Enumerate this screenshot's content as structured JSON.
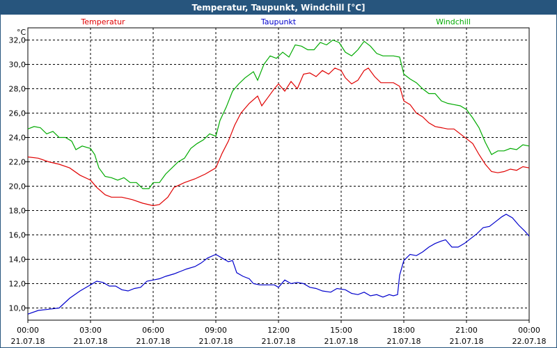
{
  "title": "Temperatur, Taupunkt, Windchill [°C]",
  "chart_data": {
    "type": "line",
    "title": "Temperatur, Taupunkt, Windchill [°C]",
    "ylabel": "°C",
    "ylim": [
      9,
      33
    ],
    "xlim": [
      0,
      24
    ],
    "grid": true,
    "legend_placement": "top",
    "y_ticks": [
      "10,0",
      "12,0",
      "14,0",
      "16,0",
      "18,0",
      "20,0",
      "22,0",
      "24,0",
      "26,0",
      "28,0",
      "30,0",
      "32,0"
    ],
    "x_ticks": [
      {
        "time": "00:00",
        "date": "21.07.18"
      },
      {
        "time": "03:00",
        "date": "21.07.18"
      },
      {
        "time": "06:00",
        "date": "21.07.18"
      },
      {
        "time": "09:00",
        "date": "21.07.18"
      },
      {
        "time": "12:00",
        "date": "21.07.18"
      },
      {
        "time": "15:00",
        "date": "21.07.18"
      },
      {
        "time": "18:00",
        "date": "21.07.18"
      },
      {
        "time": "21:00",
        "date": "21.07.18"
      },
      {
        "time": "00:00",
        "date": "22.07.18"
      }
    ],
    "series": [
      {
        "name": "Temperatur",
        "color": "#e00000",
        "points": [
          [
            0,
            22.4
          ],
          [
            0.5,
            22.3
          ],
          [
            1,
            22.0
          ],
          [
            1.5,
            21.8
          ],
          [
            2,
            21.5
          ],
          [
            2.5,
            20.9
          ],
          [
            3,
            20.5
          ],
          [
            3.3,
            19.9
          ],
          [
            3.7,
            19.3
          ],
          [
            4,
            19.1
          ],
          [
            4.5,
            19.1
          ],
          [
            5,
            18.9
          ],
          [
            5.5,
            18.6
          ],
          [
            6,
            18.4
          ],
          [
            6.3,
            18.5
          ],
          [
            6.7,
            19.1
          ],
          [
            7,
            19.9
          ],
          [
            7.5,
            20.3
          ],
          [
            8,
            20.6
          ],
          [
            8.5,
            21.0
          ],
          [
            9,
            21.5
          ],
          [
            9.3,
            22.7
          ],
          [
            9.6,
            23.7
          ],
          [
            9.9,
            25.0
          ],
          [
            10.2,
            26.0
          ],
          [
            10.6,
            26.8
          ],
          [
            11,
            27.4
          ],
          [
            11.2,
            26.6
          ],
          [
            11.5,
            27.3
          ],
          [
            11.8,
            28.0
          ],
          [
            12,
            28.4
          ],
          [
            12.3,
            27.8
          ],
          [
            12.6,
            28.6
          ],
          [
            12.9,
            28.0
          ],
          [
            13.2,
            29.2
          ],
          [
            13.5,
            29.3
          ],
          [
            13.8,
            29.0
          ],
          [
            14.1,
            29.5
          ],
          [
            14.4,
            29.2
          ],
          [
            14.7,
            29.7
          ],
          [
            15,
            29.5
          ],
          [
            15.2,
            28.9
          ],
          [
            15.5,
            28.4
          ],
          [
            15.8,
            28.7
          ],
          [
            16.1,
            29.5
          ],
          [
            16.3,
            29.7
          ],
          [
            16.6,
            29.0
          ],
          [
            16.9,
            28.5
          ],
          [
            17.2,
            28.5
          ],
          [
            17.5,
            28.5
          ],
          [
            17.8,
            28.2
          ],
          [
            18,
            27.0
          ],
          [
            18.3,
            26.7
          ],
          [
            18.6,
            26.0
          ],
          [
            18.9,
            25.7
          ],
          [
            19.2,
            25.2
          ],
          [
            19.5,
            24.9
          ],
          [
            19.8,
            24.8
          ],
          [
            20.1,
            24.7
          ],
          [
            20.4,
            24.7
          ],
          [
            20.7,
            24.3
          ],
          [
            21,
            23.9
          ],
          [
            21.3,
            23.5
          ],
          [
            21.6,
            22.6
          ],
          [
            21.9,
            21.8
          ],
          [
            22.2,
            21.2
          ],
          [
            22.5,
            21.1
          ],
          [
            22.8,
            21.2
          ],
          [
            23.1,
            21.4
          ],
          [
            23.4,
            21.3
          ],
          [
            23.7,
            21.6
          ],
          [
            24,
            21.5
          ]
        ]
      },
      {
        "name": "Taupunkt",
        "color": "#0000cc",
        "points": [
          [
            0,
            9.5
          ],
          [
            0.5,
            9.8
          ],
          [
            1,
            9.9
          ],
          [
            1.5,
            10.0
          ],
          [
            2,
            10.8
          ],
          [
            2.5,
            11.4
          ],
          [
            3,
            11.9
          ],
          [
            3.3,
            12.2
          ],
          [
            3.6,
            12.1
          ],
          [
            3.9,
            11.8
          ],
          [
            4.2,
            11.8
          ],
          [
            4.5,
            11.5
          ],
          [
            4.8,
            11.4
          ],
          [
            5.1,
            11.6
          ],
          [
            5.4,
            11.7
          ],
          [
            5.7,
            12.2
          ],
          [
            6,
            12.3
          ],
          [
            6.3,
            12.4
          ],
          [
            6.6,
            12.6
          ],
          [
            7,
            12.8
          ],
          [
            7.3,
            13.0
          ],
          [
            7.6,
            13.2
          ],
          [
            8,
            13.4
          ],
          [
            8.3,
            13.7
          ],
          [
            8.6,
            14.1
          ],
          [
            9,
            14.4
          ],
          [
            9.3,
            14.1
          ],
          [
            9.6,
            13.8
          ],
          [
            9.8,
            13.9
          ],
          [
            10,
            12.9
          ],
          [
            10.3,
            12.6
          ],
          [
            10.6,
            12.4
          ],
          [
            10.8,
            12.0
          ],
          [
            11.1,
            11.9
          ],
          [
            11.5,
            11.9
          ],
          [
            11.8,
            11.9
          ],
          [
            12,
            11.7
          ],
          [
            12.3,
            12.3
          ],
          [
            12.6,
            12.0
          ],
          [
            12.9,
            12.1
          ],
          [
            13.2,
            12.0
          ],
          [
            13.5,
            11.7
          ],
          [
            13.8,
            11.6
          ],
          [
            14.1,
            11.4
          ],
          [
            14.5,
            11.3
          ],
          [
            14.8,
            11.6
          ],
          [
            15.2,
            11.5
          ],
          [
            15.5,
            11.2
          ],
          [
            15.8,
            11.1
          ],
          [
            16.1,
            11.3
          ],
          [
            16.4,
            11.0
          ],
          [
            16.7,
            11.1
          ],
          [
            17,
            10.9
          ],
          [
            17.3,
            11.1
          ],
          [
            17.5,
            11.0
          ],
          [
            17.7,
            11.1
          ],
          [
            17.8,
            12.7
          ],
          [
            18,
            13.9
          ],
          [
            18.3,
            14.4
          ],
          [
            18.6,
            14.3
          ],
          [
            18.9,
            14.6
          ],
          [
            19.2,
            15.0
          ],
          [
            19.5,
            15.3
          ],
          [
            19.8,
            15.5
          ],
          [
            20,
            15.6
          ],
          [
            20.3,
            15.0
          ],
          [
            20.6,
            15.0
          ],
          [
            20.9,
            15.3
          ],
          [
            21.2,
            15.7
          ],
          [
            21.5,
            16.1
          ],
          [
            21.8,
            16.6
          ],
          [
            22.1,
            16.7
          ],
          [
            22.4,
            17.1
          ],
          [
            22.7,
            17.5
          ],
          [
            22.9,
            17.7
          ],
          [
            23.2,
            17.4
          ],
          [
            23.5,
            16.8
          ],
          [
            23.8,
            16.3
          ],
          [
            24,
            15.9
          ]
        ]
      },
      {
        "name": "Windchill",
        "color": "#00aa00",
        "points": [
          [
            0,
            24.7
          ],
          [
            0.3,
            24.9
          ],
          [
            0.6,
            24.8
          ],
          [
            0.9,
            24.3
          ],
          [
            1.2,
            24.5
          ],
          [
            1.5,
            24.0
          ],
          [
            1.8,
            24.0
          ],
          [
            2.1,
            23.7
          ],
          [
            2.3,
            23.0
          ],
          [
            2.6,
            23.3
          ],
          [
            3,
            23.1
          ],
          [
            3.2,
            22.6
          ],
          [
            3.4,
            21.5
          ],
          [
            3.7,
            20.8
          ],
          [
            4,
            20.7
          ],
          [
            4.3,
            20.5
          ],
          [
            4.6,
            20.7
          ],
          [
            4.9,
            20.3
          ],
          [
            5.2,
            20.3
          ],
          [
            5.5,
            19.8
          ],
          [
            5.8,
            19.8
          ],
          [
            6,
            20.3
          ],
          [
            6.3,
            20.3
          ],
          [
            6.6,
            21.0
          ],
          [
            6.9,
            21.5
          ],
          [
            7.2,
            22.0
          ],
          [
            7.5,
            22.3
          ],
          [
            7.8,
            23.1
          ],
          [
            8.1,
            23.5
          ],
          [
            8.4,
            23.8
          ],
          [
            8.7,
            24.3
          ],
          [
            9,
            24.1
          ],
          [
            9.2,
            25.4
          ],
          [
            9.5,
            26.5
          ],
          [
            9.8,
            27.8
          ],
          [
            10.1,
            28.4
          ],
          [
            10.4,
            28.9
          ],
          [
            10.8,
            29.4
          ],
          [
            11,
            28.7
          ],
          [
            11.3,
            30.0
          ],
          [
            11.6,
            30.7
          ],
          [
            11.9,
            30.5
          ],
          [
            12.2,
            31.0
          ],
          [
            12.5,
            30.6
          ],
          [
            12.8,
            31.6
          ],
          [
            13.1,
            31.5
          ],
          [
            13.4,
            31.2
          ],
          [
            13.7,
            31.2
          ],
          [
            14,
            31.8
          ],
          [
            14.3,
            31.6
          ],
          [
            14.6,
            32.0
          ],
          [
            14.9,
            31.8
          ],
          [
            15.2,
            31.0
          ],
          [
            15.5,
            30.7
          ],
          [
            15.8,
            31.2
          ],
          [
            16.1,
            31.9
          ],
          [
            16.4,
            31.5
          ],
          [
            16.7,
            30.9
          ],
          [
            17,
            30.7
          ],
          [
            17.5,
            30.7
          ],
          [
            17.8,
            30.6
          ],
          [
            18,
            29.2
          ],
          [
            18.3,
            28.8
          ],
          [
            18.6,
            28.5
          ],
          [
            18.9,
            28.0
          ],
          [
            19.2,
            27.6
          ],
          [
            19.5,
            27.6
          ],
          [
            19.8,
            27.0
          ],
          [
            20.1,
            26.8
          ],
          [
            20.4,
            26.7
          ],
          [
            20.7,
            26.6
          ],
          [
            21,
            26.3
          ],
          [
            21.3,
            25.6
          ],
          [
            21.6,
            24.8
          ],
          [
            21.9,
            23.6
          ],
          [
            22.2,
            22.6
          ],
          [
            22.5,
            22.9
          ],
          [
            22.8,
            22.9
          ],
          [
            23.1,
            23.1
          ],
          [
            23.4,
            23.0
          ],
          [
            23.7,
            23.4
          ],
          [
            24,
            23.3
          ]
        ]
      }
    ]
  }
}
